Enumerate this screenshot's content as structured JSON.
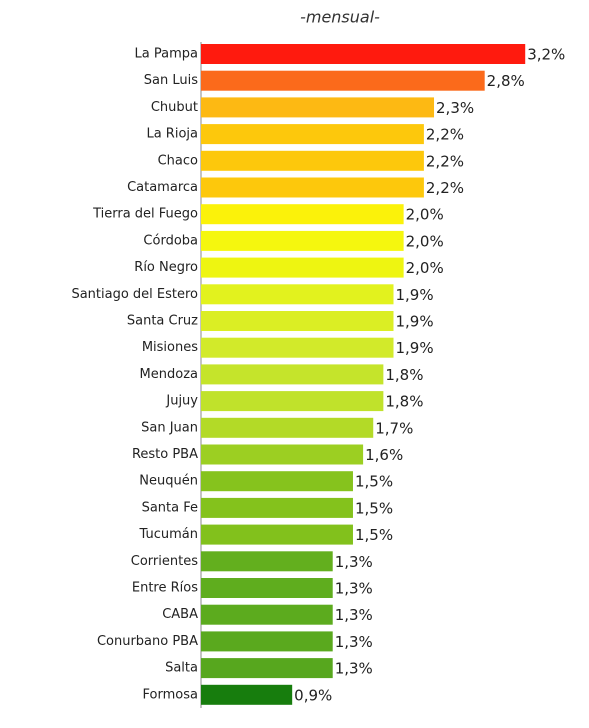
{
  "chart_data": {
    "type": "hbar",
    "title": "-mensual-",
    "categories": [
      "La Pampa",
      "San Luis",
      "Chubut",
      "La Rioja",
      "Chaco",
      "Catamarca",
      "Tierra del Fuego",
      "Córdoba",
      "Río Negro",
      "Santiago del Estero",
      "Santa Cruz",
      "Misiones",
      "Mendoza",
      "Jujuy",
      "San Juan",
      "Resto PBA",
      "Neuquén",
      "Santa Fe",
      "Tucumán",
      "Corrientes",
      "Entre Ríos",
      "CABA",
      "Conurbano PBA",
      "Salta",
      "Formosa"
    ],
    "values": [
      3.2,
      2.8,
      2.3,
      2.2,
      2.2,
      2.2,
      2.0,
      2.0,
      2.0,
      1.9,
      1.9,
      1.9,
      1.8,
      1.8,
      1.7,
      1.6,
      1.5,
      1.5,
      1.5,
      1.3,
      1.3,
      1.3,
      1.3,
      1.3,
      0.9
    ],
    "value_labels": [
      "3,2%",
      "2,8%",
      "2,3%",
      "2,2%",
      "2,2%",
      "2,2%",
      "2,0%",
      "2,0%",
      "2,0%",
      "1,9%",
      "1,9%",
      "1,9%",
      "1,8%",
      "1,8%",
      "1,7%",
      "1,6%",
      "1,5%",
      "1,5%",
      "1,5%",
      "1,3%",
      "1,3%",
      "1,3%",
      "1,3%",
      "1,3%",
      "0,9%"
    ],
    "colors": [
      "#ff1a0e",
      "#fb6a1b",
      "#fdb913",
      "#fdc80c",
      "#fdc80c",
      "#fdc80c",
      "#fbf20a",
      "#f5f70e",
      "#eef511",
      "#e2f21e",
      "#dbee24",
      "#d2ea2a",
      "#c5e42b",
      "#c0e22b",
      "#b3da27",
      "#9ccf22",
      "#86c31d",
      "#84c21c",
      "#82c11c",
      "#63af1e",
      "#5fad1e",
      "#5cab1e",
      "#5aa91e",
      "#57a71e",
      "#177d0d"
    ],
    "xlim": [
      0,
      3.8
    ]
  }
}
